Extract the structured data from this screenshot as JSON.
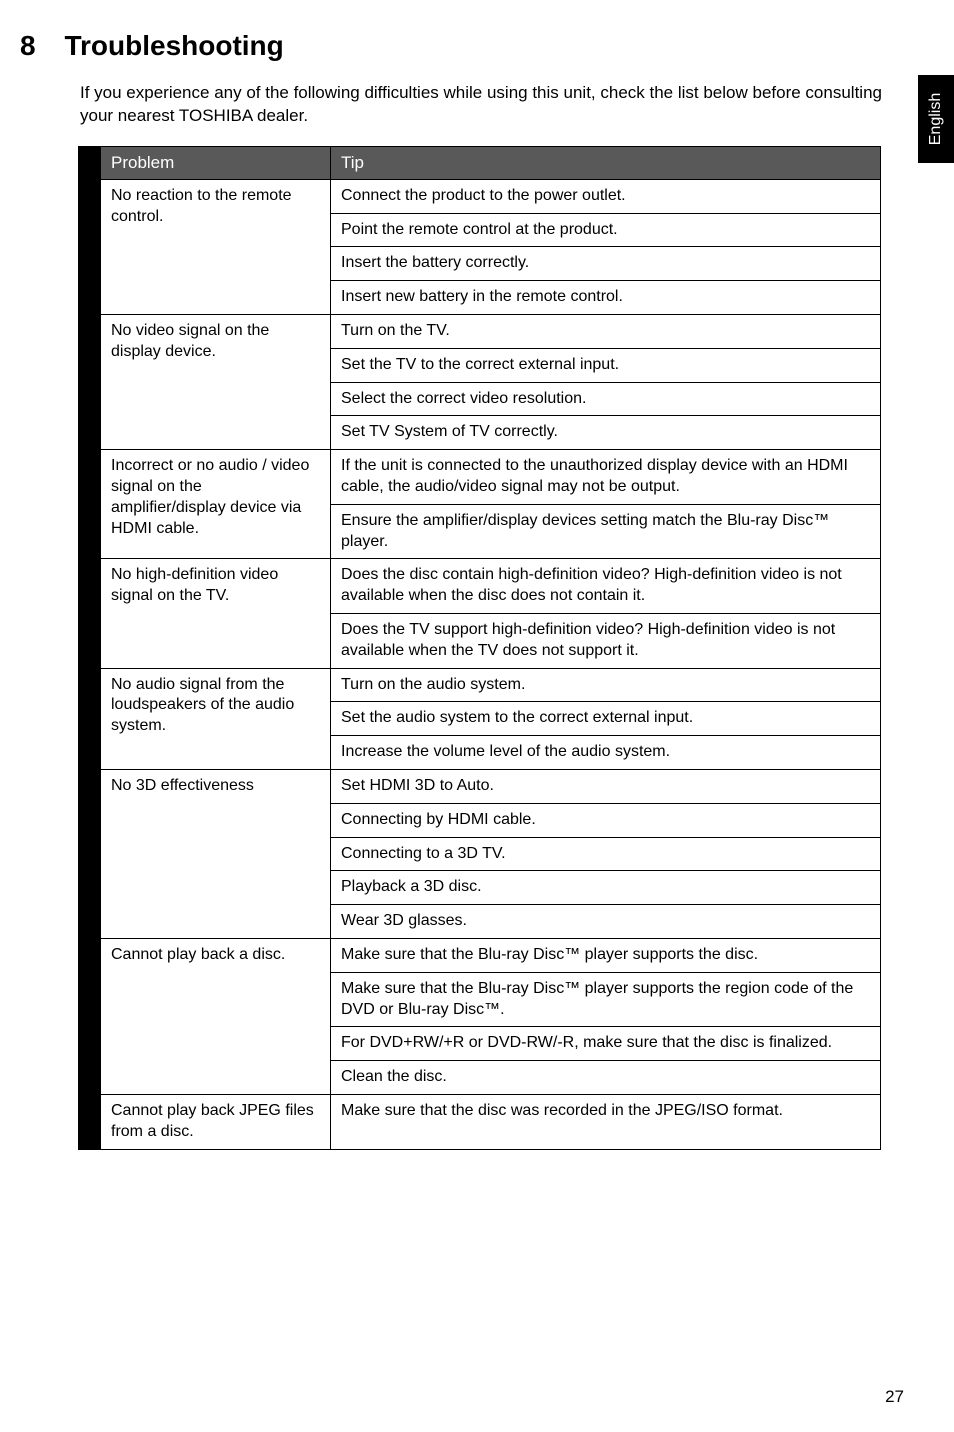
{
  "section": {
    "number": "8",
    "title": "Troubleshooting"
  },
  "intro": "If you experience any of the following difficulties while using this unit, check the list below before consulting your nearest TOSHIBA dealer.",
  "table_header": {
    "problem": "Problem",
    "tip": "Tip"
  },
  "rows": [
    {
      "problem": "No reaction to the remote control.",
      "tips": [
        "Connect the product to the power outlet.",
        "Point the remote control at the product.",
        "Insert the battery correctly.",
        "Insert new battery in the remote control."
      ]
    },
    {
      "problem": "No video signal on the display device.",
      "tips": [
        "Turn on the TV.",
        "Set the TV to the correct external input.",
        "Select the correct video resolution.",
        "Set TV System of TV correctly."
      ]
    },
    {
      "problem": "Incorrect or no audio / video signal on the amplifier/display device via HDMI cable.",
      "tips": [
        "If the unit is connected to the unauthorized display device with an HDMI cable, the audio/video signal may not be output.",
        "Ensure the amplifier/display devices setting match the Blu-ray Disc™ player."
      ],
      "split": [
        2,
        2
      ]
    },
    {
      "problem": "No high-definition video signal on the TV.",
      "tips": [
        "Does the disc contain high-definition video? High-definition video is not available when the disc does not contain it.",
        "Does the TV support high-definition video? High-definition video is not available when the TV does not support it."
      ]
    },
    {
      "problem": "No audio signal from the loudspeakers of the audio system.",
      "tips": [
        "Turn on the audio system.",
        "Set the audio system to the correct external input.",
        "Increase the volume level of the audio system."
      ]
    },
    {
      "problem": "No 3D effectiveness",
      "tips": [
        "Set HDMI 3D to Auto.",
        "Connecting by HDMI cable.",
        "Connecting to a 3D TV.",
        "Playback a 3D disc.",
        "Wear 3D glasses."
      ]
    },
    {
      "problem": "Cannot play back a disc.",
      "tips": [
        "Make sure that the Blu-ray Disc™ player supports the disc.",
        "Make sure that the Blu-ray Disc™ player supports the region code of the DVD or Blu-ray Disc™.",
        "For DVD+RW/+R or DVD-RW/-R, make sure that the disc is finalized.",
        "Clean the disc."
      ]
    },
    {
      "problem": "Cannot play back JPEG files from a disc.",
      "tips": [
        "Make sure that the disc was recorded in the JPEG/ISO format."
      ]
    }
  ],
  "language_tab": "English",
  "page_number": "27",
  "colors": {
    "header_bg": "#595959",
    "header_fg": "#ffffff",
    "border": "#000000",
    "tab_bg": "#000000",
    "tab_fg": "#ffffff"
  }
}
